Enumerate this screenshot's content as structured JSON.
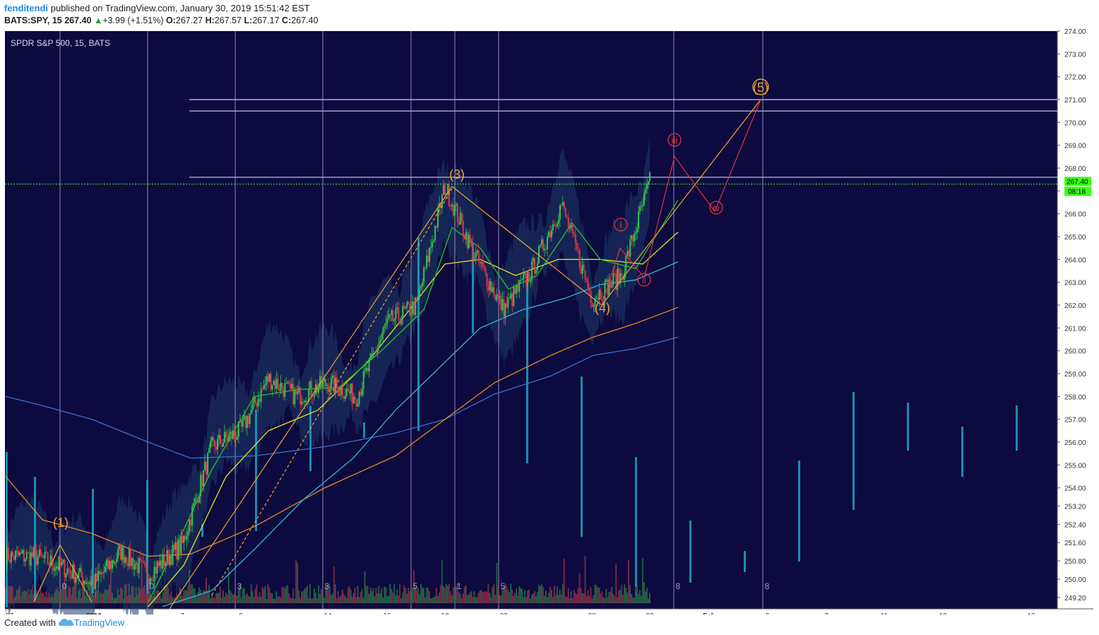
{
  "header": {
    "author": "fenditendi",
    "published": " published on TradingView.com, January 30, 2019 15:51:42 EST",
    "symbol": "BATS:SPY, 15",
    "last": "267.40",
    "change_arrow": "▲",
    "change": "+3.99 (+1.51%)",
    "o_label": "O:",
    "o": "267.27",
    "h_label": "H:",
    "h": "267.57",
    "l_label": "L:",
    "l": "267.17",
    "c_label": "C:",
    "c": "267.40"
  },
  "footer": {
    "created_with": "Created with",
    "brand": "TradingView",
    "logo_icon": "tradingview-cloud-icon"
  },
  "colors": {
    "background": "#0c0a3e",
    "frame": "#ffffff",
    "axis_text": "#333333",
    "up": "#33c24d",
    "down": "#e0334a",
    "volume": "#1aa3c4",
    "wave_major": "#f0a030",
    "wave_minor": "#e03040",
    "last_price": "#39ff14",
    "ma_green": "#22c22a",
    "ma_yellow": "#e8e020",
    "ma_cyan": "#2fb8e0",
    "ma_orange": "#e88a20",
    "ma_blue": "#3a6fd8"
  },
  "chart_data": {
    "type": "candlestick",
    "title": "SPDR S&P 500, 15, BATS",
    "ylim": [
      248.7,
      274.0
    ],
    "y_ticks": [
      "274.00",
      "273.00",
      "272.00",
      "271.00",
      "270.00",
      "269.00",
      "268.00",
      "267.00",
      "266.00",
      "265.00",
      "264.00",
      "263.00",
      "262.00",
      "261.00",
      "260.00",
      "259.00",
      "258.00",
      "257.00",
      "256.00",
      "255.00",
      "254.00",
      "253.20",
      "252.40",
      "251.60",
      "250.80",
      "250.00",
      "249.20"
    ],
    "x_ticks": [
      "27",
      "2019",
      "7",
      "9",
      "14",
      "16",
      "18",
      "23",
      "28",
      "30",
      "Feb",
      "5",
      "7",
      "11",
      "13",
      "18"
    ],
    "last_price": "267.40",
    "countdown": "08:18",
    "horizontal_levels": [
      271.0,
      270.5,
      267.6
    ],
    "wave_labels": [
      {
        "text": "(1)",
        "price": 251.5,
        "date": "Jan 2"
      },
      {
        "text": "(3)",
        "price": 267.4,
        "date": "Jan 18"
      },
      {
        "text": "(4)",
        "price": 261.3,
        "date": "Jan 28"
      },
      {
        "text": "(5)",
        "price": 271.4,
        "date": "Feb 5"
      },
      {
        "text": "i",
        "price": 265.0,
        "date": "Jan 29"
      },
      {
        "text": "ii",
        "price": 262.5,
        "date": "Jan 29"
      },
      {
        "text": "iii",
        "price": 268.9,
        "date": "Jan 30"
      },
      {
        "text": "iv",
        "price": 265.8,
        "date": "Feb 1"
      }
    ],
    "session_numbers": [
      "0",
      "0",
      "3",
      "3",
      "5",
      "1",
      "5",
      "8",
      "8"
    ],
    "price_path": [
      {
        "date": "Dec 27",
        "price": 251.0
      },
      {
        "date": "Dec 28",
        "price": 251.0
      },
      {
        "date": "Dec 31",
        "price": 250.5
      },
      {
        "date": "Jan 2",
        "price": 249.8
      },
      {
        "date": "Jan 3",
        "price": 251.2
      },
      {
        "date": "Jan 4",
        "price": 250.2
      },
      {
        "date": "Jan 7",
        "price": 251.5
      },
      {
        "date": "Jan 8",
        "price": 255.8
      },
      {
        "date": "Jan 9",
        "price": 256.5
      },
      {
        "date": "Jan 10",
        "price": 258.8
      },
      {
        "date": "Jan 11",
        "price": 258.0
      },
      {
        "date": "Jan 14",
        "price": 258.6
      },
      {
        "date": "Jan 15",
        "price": 258.0
      },
      {
        "date": "Jan 16",
        "price": 261.2
      },
      {
        "date": "Jan 17",
        "price": 262.0
      },
      {
        "date": "Jan 18",
        "price": 267.2
      },
      {
        "date": "Jan 22",
        "price": 264.2
      },
      {
        "date": "Jan 23",
        "price": 261.8
      },
      {
        "date": "Jan 24",
        "price": 263.5
      },
      {
        "date": "Jan 25",
        "price": 266.4
      },
      {
        "date": "Jan 28",
        "price": 262.3
      },
      {
        "date": "Jan 29",
        "price": 263.3
      },
      {
        "date": "Jan 30",
        "price": 267.4
      }
    ]
  }
}
